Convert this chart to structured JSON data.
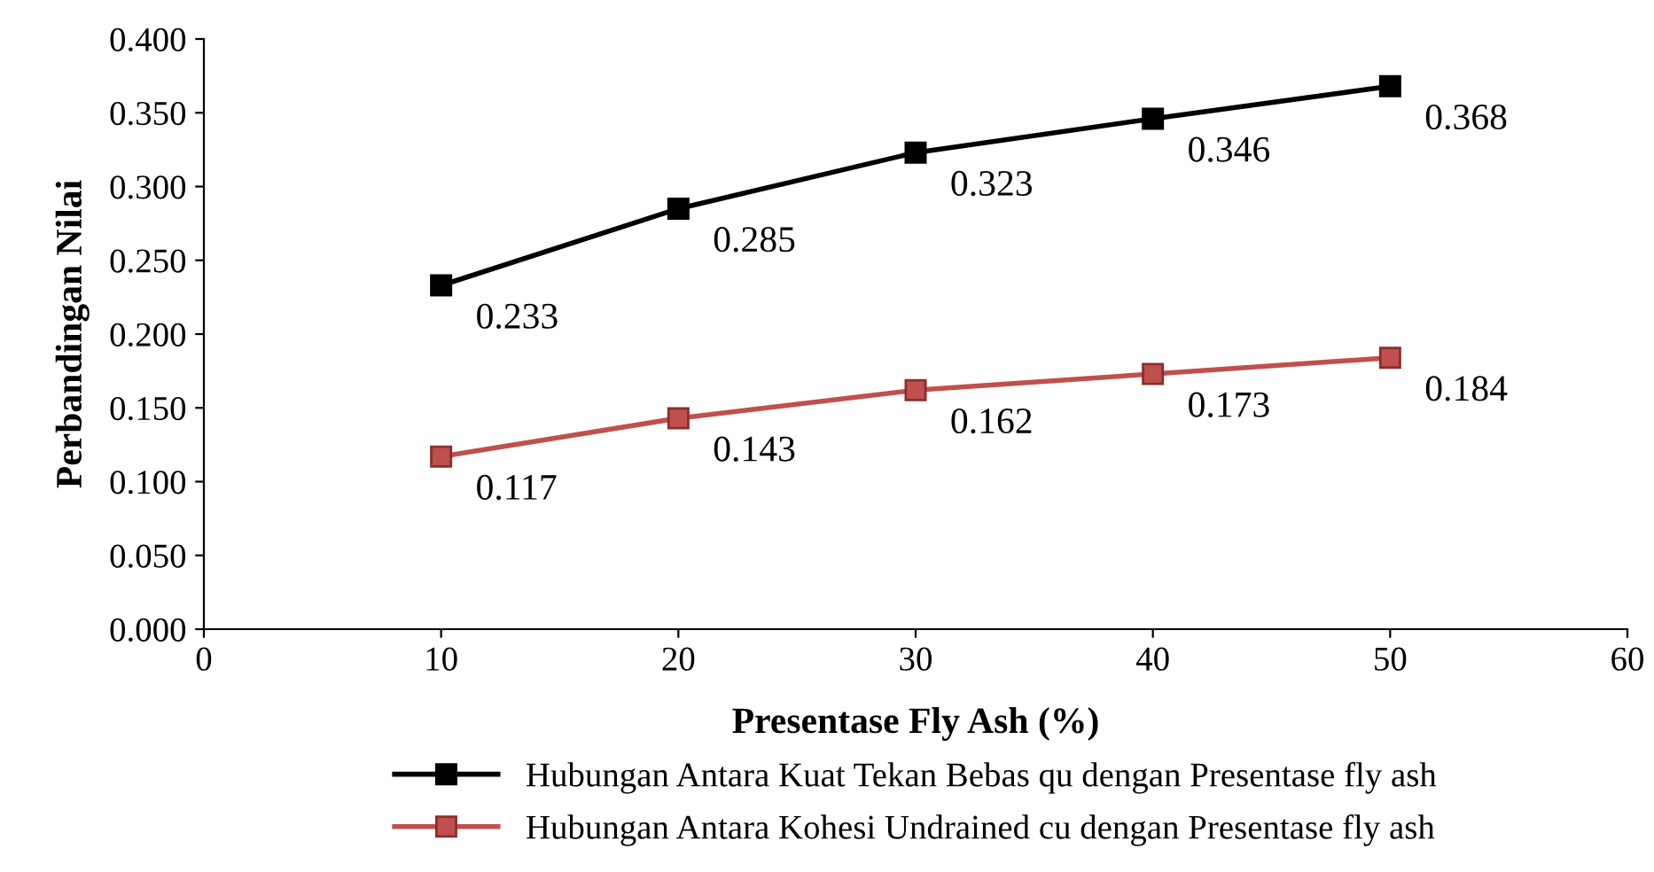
{
  "chart_data": {
    "type": "line",
    "xlabel": "Presentase Fly Ash (%)",
    "ylabel": "Perbandingan Nilai",
    "x": [
      10,
      20,
      30,
      40,
      50
    ],
    "series": [
      {
        "name": "Hubungan Antara Kuat Tekan Bebas qu dengan Presentase fly ash",
        "color": "#000000",
        "values": [
          0.233,
          0.285,
          0.323,
          0.346,
          0.368
        ]
      },
      {
        "name": "Hubungan Antara Kohesi Undrained cu dengan Presentase fly ash",
        "color": "#c0504d",
        "values": [
          0.117,
          0.143,
          0.162,
          0.173,
          0.184
        ]
      }
    ],
    "xlim": [
      0,
      60
    ],
    "xticks": [
      0,
      10,
      20,
      30,
      40,
      50,
      60
    ],
    "ylim": [
      0,
      0.4
    ],
    "yticks": [
      {
        "value": 0,
        "label": "0.000"
      },
      {
        "value": 0.05,
        "label": "0.050"
      },
      {
        "value": 0.1,
        "label": "0.100"
      },
      {
        "value": 0.15,
        "label": "0.150"
      },
      {
        "value": 0.2,
        "label": "0.200"
      },
      {
        "value": 0.25,
        "label": "0.250"
      },
      {
        "value": 0.3,
        "label": "0.300"
      },
      {
        "value": 0.35,
        "label": "0.350"
      },
      {
        "value": 0.4,
        "label": "0.400"
      }
    ],
    "data_labels": true,
    "marker": "square",
    "line_style": "solid",
    "grid": false,
    "legend": "bottom"
  }
}
